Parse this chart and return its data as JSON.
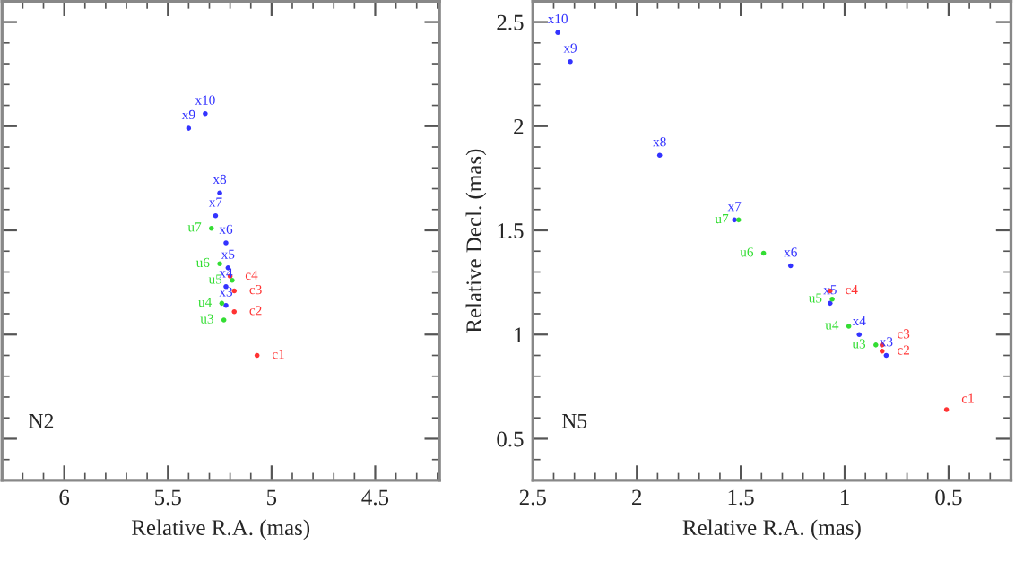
{
  "chart_data": [
    {
      "type": "scatter",
      "xlabel": "Relative R.A. (mas)",
      "xlim": [
        6.3,
        4.19
      ],
      "xticks": [
        6,
        5.5,
        5,
        4.5
      ],
      "ylim": [
        0.3,
        2.6
      ],
      "yticks": [
        0.5,
        1,
        1.5,
        2,
        2.5
      ],
      "tick_labels": "x",
      "marker": "circle",
      "grid": false,
      "legend": false,
      "annotations": [
        "N2"
      ],
      "series": [
        {
          "color": "#3333ff",
          "x": [
            5.32,
            5.4,
            5.25,
            5.27,
            5.22,
            5.21,
            5.22,
            5.22
          ],
          "values": [
            2.06,
            1.99,
            1.68,
            1.57,
            1.44,
            1.32,
            1.23,
            1.14
          ],
          "value_labels": [
            "x10",
            "x9",
            "x8",
            "x7",
            "x6",
            "x5",
            "x4",
            "x3"
          ]
        },
        {
          "color": "#33dd33",
          "x": [
            5.29,
            5.25,
            5.19,
            5.24,
            5.23
          ],
          "values": [
            1.51,
            1.34,
            1.26,
            1.15,
            1.07
          ],
          "value_labels": [
            "u7",
            "u6",
            "u5",
            "u4",
            "u3"
          ]
        },
        {
          "color": "#ff3333",
          "x": [
            5.2,
            5.18,
            5.18,
            5.07
          ],
          "values": [
            1.28,
            1.21,
            1.11,
            0.9
          ],
          "value_labels": [
            "c4",
            "c3",
            "c2",
            "c1"
          ]
        }
      ]
    },
    {
      "type": "scatter",
      "xlabel": "Relative R.A. (mas)",
      "ylabel": "Relative Decl. (mas)",
      "xlim": [
        2.5,
        0.2
      ],
      "xticks": [
        2.5,
        2,
        1.5,
        1,
        0.5
      ],
      "ylim": [
        0.3,
        2.6
      ],
      "yticks": [
        0.5,
        1,
        1.5,
        2,
        2.5
      ],
      "marker": "circle",
      "grid": false,
      "legend": false,
      "annotations": [
        "N5"
      ],
      "series": [
        {
          "color": "#3333ff",
          "x": [
            2.38,
            2.32,
            1.89,
            1.53,
            1.26,
            1.07,
            0.93,
            0.8
          ],
          "values": [
            2.45,
            2.31,
            1.86,
            1.55,
            1.33,
            1.15,
            1.0,
            0.9
          ],
          "value_labels": [
            "x10",
            "x9",
            "x8",
            "x7",
            "x6",
            "x5",
            "x4",
            "x3"
          ]
        },
        {
          "color": "#33dd33",
          "x": [
            1.51,
            1.39,
            1.06,
            0.98,
            0.85
          ],
          "values": [
            1.55,
            1.39,
            1.17,
            1.04,
            0.95
          ],
          "value_labels": [
            "u7",
            "u6",
            "u5",
            "u4",
            "u3"
          ]
        },
        {
          "color": "#ff3333",
          "x": [
            1.07,
            0.82,
            0.82,
            0.51
          ],
          "values": [
            1.21,
            0.95,
            0.92,
            0.64
          ],
          "value_labels": [
            "c4",
            "c3",
            "c2",
            "c1"
          ]
        }
      ]
    }
  ]
}
